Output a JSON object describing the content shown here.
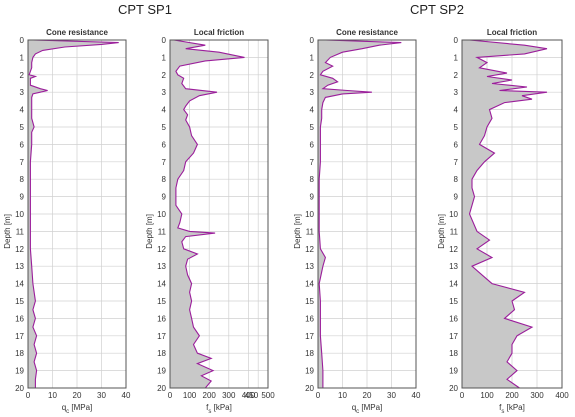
{
  "group_titles": [
    "CPT SP1",
    "CPT SP2"
  ],
  "colors": {
    "line": "#9b1e9b",
    "fill": "#c8c8c8",
    "grid": "#d0d0d0",
    "axis": "#555555"
  },
  "chart_data": [
    {
      "type": "area",
      "title": "Cone resistance",
      "group": "CPT SP1",
      "xlabel": "qc [MPa]",
      "ylabel": "Depth [m]",
      "xlim": [
        0,
        40
      ],
      "xticks": [
        0,
        10,
        20,
        30,
        40
      ],
      "ylim": [
        0,
        20
      ],
      "yticks": [
        0,
        1,
        2,
        3,
        4,
        5,
        6,
        7,
        8,
        9,
        10,
        11,
        12,
        13,
        14,
        15,
        16,
        17,
        18,
        19,
        20
      ],
      "grid": true,
      "depth": [
        0,
        0.15,
        0.25,
        0.4,
        0.6,
        0.8,
        1.0,
        1.3,
        1.6,
        1.8,
        2.0,
        2.1,
        2.2,
        2.4,
        2.6,
        2.8,
        2.9,
        3.0,
        3.1,
        3.3,
        3.6,
        4.0,
        4.5,
        5.0,
        5.3,
        5.6,
        6.0,
        7.0,
        8.0,
        9.0,
        10.0,
        11.0,
        12.0,
        13.0,
        14.0,
        15.0,
        15.5,
        16.0,
        16.5,
        17.0,
        17.5,
        18.0,
        18.5,
        19.0,
        19.5,
        20.0
      ],
      "values": [
        2,
        37,
        30,
        15,
        6,
        3,
        2,
        1.5,
        1.5,
        1,
        0.5,
        3,
        1,
        1,
        1,
        5,
        8,
        5,
        2,
        1.5,
        1.5,
        1.5,
        1.5,
        2.5,
        1.5,
        1.5,
        1.5,
        1,
        1,
        1,
        1,
        1,
        1,
        1.5,
        2,
        3,
        2,
        3,
        2,
        3.5,
        2.5,
        3.5,
        2.5,
        3.5,
        3,
        3
      ]
    },
    {
      "type": "area",
      "title": "Local friction",
      "group": "CPT SP1",
      "xlabel": "fs [kPa]",
      "ylabel": "Depth [m]",
      "xlim": [
        0,
        500
      ],
      "xticks": [
        0,
        100,
        200,
        300,
        400,
        450,
        500
      ],
      "xticklabels": [
        "0",
        "100",
        "200",
        "300",
        "400",
        "450",
        "500"
      ],
      "ylim": [
        0,
        20
      ],
      "yticks": [
        0,
        1,
        2,
        3,
        4,
        5,
        6,
        7,
        8,
        9,
        10,
        11,
        12,
        13,
        14,
        15,
        16,
        17,
        18,
        19,
        20
      ],
      "grid": true,
      "depth": [
        0,
        0.3,
        0.5,
        0.7,
        1.0,
        1.2,
        1.5,
        1.8,
        2.0,
        2.2,
        2.5,
        2.8,
        3.0,
        3.2,
        3.5,
        3.8,
        4.0,
        4.3,
        4.6,
        5.0,
        5.5,
        6.0,
        6.5,
        7.0,
        7.5,
        8.0,
        8.5,
        9.0,
        9.5,
        10.0,
        10.5,
        10.8,
        11.0,
        11.1,
        11.3,
        11.6,
        12.0,
        12.3,
        12.6,
        13.0,
        13.5,
        14.0,
        14.5,
        15.0,
        15.5,
        16.0,
        16.5,
        17.0,
        17.5,
        18.0,
        18.3,
        18.6,
        19.0,
        19.3,
        19.6,
        20.0
      ],
      "values": [
        20,
        180,
        80,
        250,
        380,
        180,
        50,
        30,
        40,
        70,
        60,
        80,
        240,
        150,
        100,
        80,
        70,
        90,
        80,
        100,
        110,
        140,
        120,
        80,
        70,
        40,
        30,
        30,
        30,
        60,
        50,
        40,
        100,
        230,
        80,
        60,
        70,
        140,
        90,
        80,
        90,
        110,
        100,
        110,
        100,
        110,
        120,
        150,
        120,
        140,
        210,
        140,
        220,
        160,
        210,
        180
      ]
    },
    {
      "type": "area",
      "title": "Cone resistance",
      "group": "CPT SP2",
      "xlabel": "qc [MPa]",
      "ylabel": "Depth [m]",
      "xlim": [
        0,
        40
      ],
      "xticks": [
        0,
        10,
        20,
        30,
        40
      ],
      "ylim": [
        0,
        20
      ],
      "yticks": [
        0,
        1,
        2,
        3,
        4,
        5,
        6,
        7,
        8,
        9,
        10,
        11,
        12,
        13,
        14,
        15,
        16,
        17,
        18,
        19,
        20
      ],
      "grid": true,
      "depth": [
        0,
        0.15,
        0.3,
        0.5,
        0.7,
        1.0,
        1.3,
        1.5,
        1.8,
        2.0,
        2.2,
        2.4,
        2.6,
        2.8,
        2.9,
        3.0,
        3.1,
        3.3,
        3.6,
        4.0,
        4.5,
        5.0,
        6.0,
        7.0,
        8.0,
        9.0,
        10.0,
        11.0,
        12.0,
        12.5,
        13.0,
        14.0,
        15.0,
        16.0,
        17.0,
        18.0,
        19.0,
        20.0
      ],
      "values": [
        3,
        34,
        25,
        18,
        10,
        5,
        3,
        6,
        2,
        1,
        6,
        8,
        4,
        2,
        12,
        22,
        10,
        3,
        2,
        1.5,
        1.5,
        1,
        1,
        1,
        0.5,
        0.5,
        0.5,
        0.5,
        1,
        3,
        2,
        0.5,
        1,
        1,
        1,
        1.5,
        2,
        2
      ]
    },
    {
      "type": "area",
      "title": "Local friction",
      "group": "CPT SP2",
      "xlabel": "fs [kPa]",
      "ylabel": "Depth [m]",
      "xlim": [
        0,
        400
      ],
      "xticks": [
        0,
        100,
        200,
        300,
        400
      ],
      "ylim": [
        0,
        20
      ],
      "yticks": [
        0,
        1,
        2,
        3,
        4,
        5,
        6,
        7,
        8,
        9,
        10,
        11,
        12,
        13,
        14,
        15,
        16,
        17,
        18,
        19,
        20
      ],
      "grid": true,
      "depth": [
        0,
        0.3,
        0.5,
        0.8,
        1.0,
        1.3,
        1.6,
        1.9,
        2.1,
        2.3,
        2.5,
        2.7,
        2.9,
        3.0,
        3.2,
        3.4,
        3.6,
        3.8,
        4.0,
        4.5,
        5.0,
        5.5,
        6.0,
        6.5,
        7.0,
        7.5,
        8.0,
        8.5,
        9.0,
        10.0,
        11.0,
        11.5,
        12.0,
        12.5,
        13.0,
        13.5,
        14.0,
        14.5,
        15.0,
        15.5,
        16.0,
        16.5,
        17.0,
        17.5,
        18.0,
        18.5,
        19.0,
        19.5,
        20.0
      ],
      "values": [
        30,
        250,
        340,
        250,
        60,
        100,
        70,
        180,
        100,
        200,
        120,
        260,
        150,
        340,
        240,
        280,
        170,
        140,
        110,
        120,
        100,
        90,
        70,
        130,
        90,
        60,
        40,
        40,
        50,
        30,
        60,
        110,
        60,
        120,
        40,
        80,
        120,
        250,
        200,
        210,
        170,
        280,
        220,
        200,
        200,
        180,
        220,
        180,
        230
      ]
    }
  ]
}
